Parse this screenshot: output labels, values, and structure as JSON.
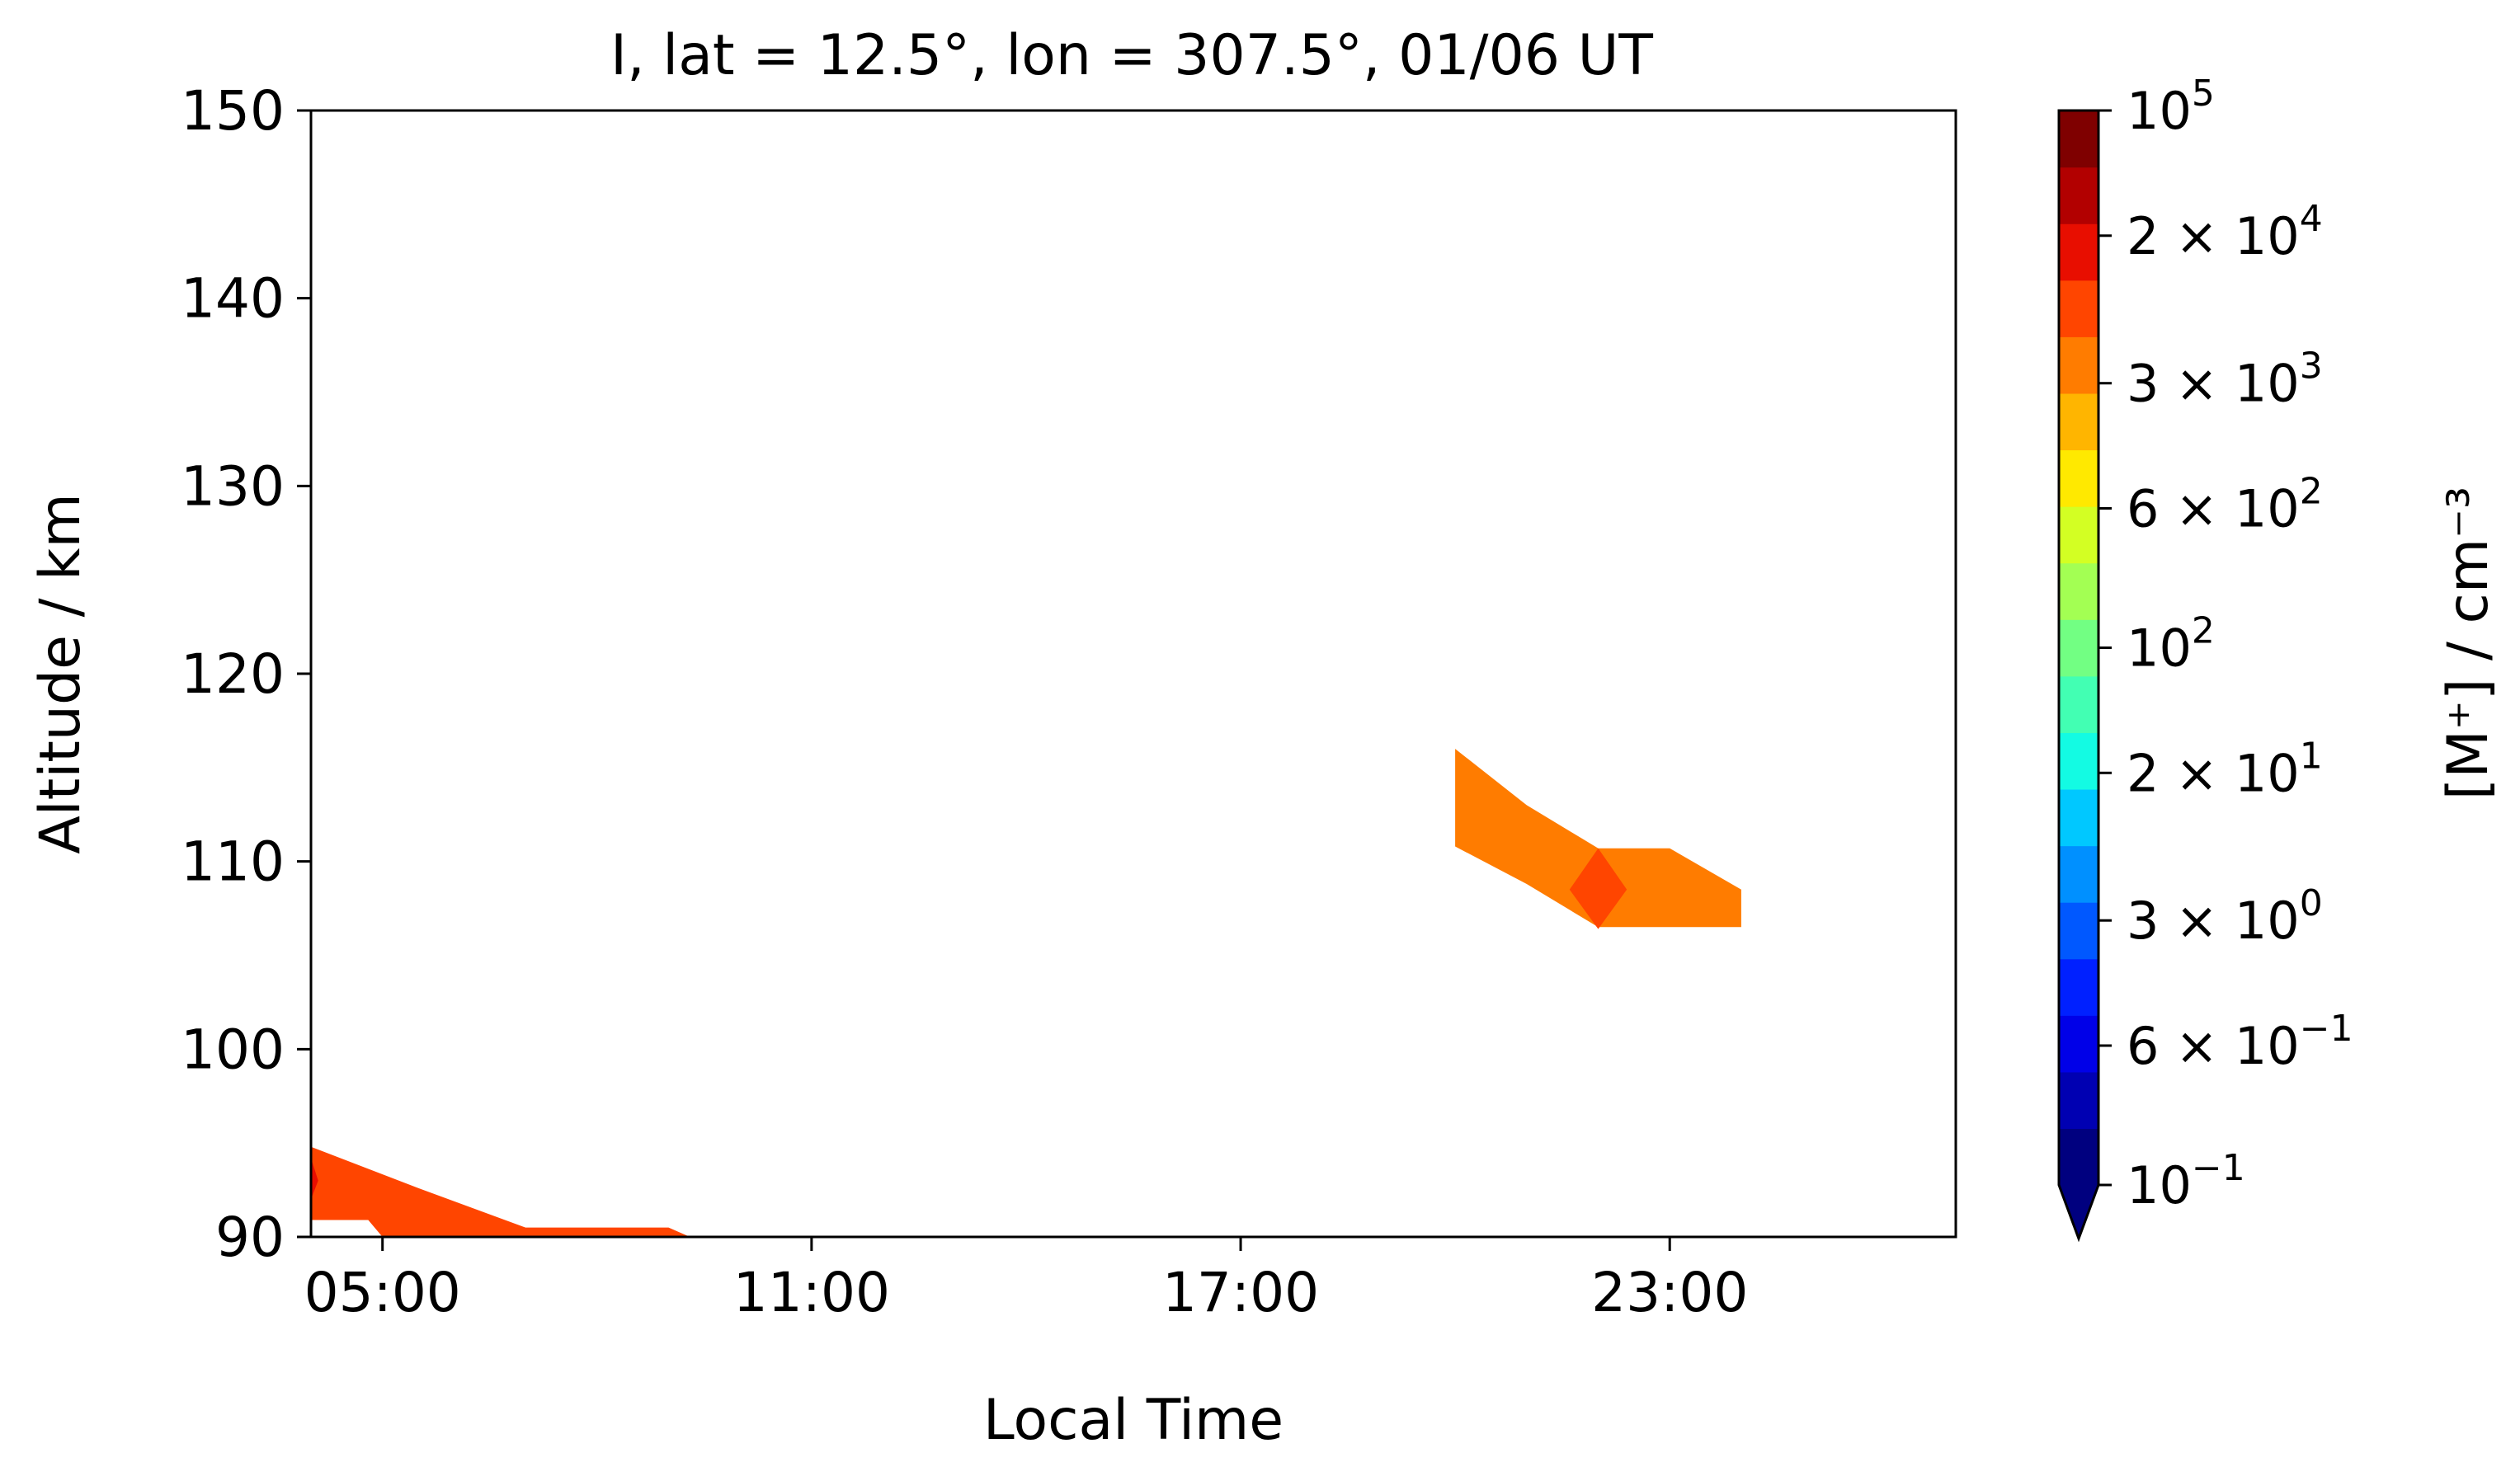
{
  "chart_data": {
    "type": "contour",
    "title": "I, lat = 12.5°, lon = 307.5°, 01/06 UT",
    "xlabel": "Local Time",
    "ylabel": "Altitude / km",
    "x_unit": "hours (local time)",
    "xlim": [
      4.0,
      27.0
    ],
    "ylim": [
      90,
      150
    ],
    "x_ticks": [
      {
        "value": 5,
        "label": "05:00"
      },
      {
        "value": 11,
        "label": "11:00"
      },
      {
        "value": 17,
        "label": "17:00"
      },
      {
        "value": 23,
        "label": "23:00"
      }
    ],
    "y_ticks": [
      90,
      100,
      110,
      120,
      130,
      140,
      150
    ],
    "colorbar": {
      "label": "[M⁺] / cm⁻³",
      "scale": "log",
      "range": [
        0.1,
        100000
      ],
      "extend": "min",
      "tick_labels": [
        {
          "value": 100000,
          "mantissa": "",
          "base": "10",
          "exp": "5"
        },
        {
          "value": 20000,
          "mantissa": "2 × ",
          "base": "10",
          "exp": "4"
        },
        {
          "value": 3000,
          "mantissa": "3 × ",
          "base": "10",
          "exp": "3"
        },
        {
          "value": 600,
          "mantissa": "6 × ",
          "base": "10",
          "exp": "2"
        },
        {
          "value": 100,
          "mantissa": "",
          "base": "10",
          "exp": "2"
        },
        {
          "value": 20,
          "mantissa": "2 × ",
          "base": "10",
          "exp": "1"
        },
        {
          "value": 3,
          "mantissa": "3 × ",
          "base": "10",
          "exp": "0"
        },
        {
          "value": 0.6,
          "mantissa": "6 × ",
          "base": "10",
          "exp": "−1"
        },
        {
          "value": 0.1,
          "mantissa": "",
          "base": "10",
          "exp": "−1"
        }
      ],
      "colors": [
        "#00007f",
        "#0000b2",
        "#0000e8",
        "#0020ff",
        "#0058ff",
        "#0090ff",
        "#00c8ff",
        "#13fbe3",
        "#42ffb3",
        "#72ff83",
        "#a3ff53",
        "#d3ff23",
        "#ffe900",
        "#ffb500",
        "#ff7c00",
        "#ff4500",
        "#e80e00",
        "#b20000",
        "#7f0000"
      ]
    },
    "regions": [
      {
        "name": "layer-near-05",
        "color": "#ff4500",
        "points": [
          [
            4.0,
            94.8
          ],
          [
            5.5,
            92.6
          ],
          [
            7.0,
            90.5
          ],
          [
            9.0,
            90.5
          ],
          [
            9.3,
            90.0
          ],
          [
            5.0,
            90.0
          ],
          [
            4.8,
            90.9
          ],
          [
            4.0,
            90.9
          ]
        ]
      },
      {
        "name": "layer-near-05-core",
        "color": "#e80e00",
        "points": [
          [
            4.0,
            94.2
          ],
          [
            4.1,
            93.0
          ],
          [
            4.0,
            92.0
          ]
        ]
      },
      {
        "name": "layer-near-22",
        "color": "#ff7c00",
        "points": [
          [
            20.0,
            116.0
          ],
          [
            21.0,
            113.0
          ],
          [
            22.0,
            110.7
          ],
          [
            23.0,
            110.7
          ],
          [
            24.0,
            108.5
          ],
          [
            24.0,
            106.5
          ],
          [
            22.0,
            106.5
          ],
          [
            21.0,
            108.8
          ],
          [
            20.0,
            110.8
          ]
        ]
      },
      {
        "name": "layer-near-22-core",
        "color": "#ff4500",
        "points": [
          [
            22.0,
            110.7
          ],
          [
            22.4,
            108.5
          ],
          [
            22.0,
            106.4
          ],
          [
            21.6,
            108.5
          ]
        ]
      }
    ]
  }
}
